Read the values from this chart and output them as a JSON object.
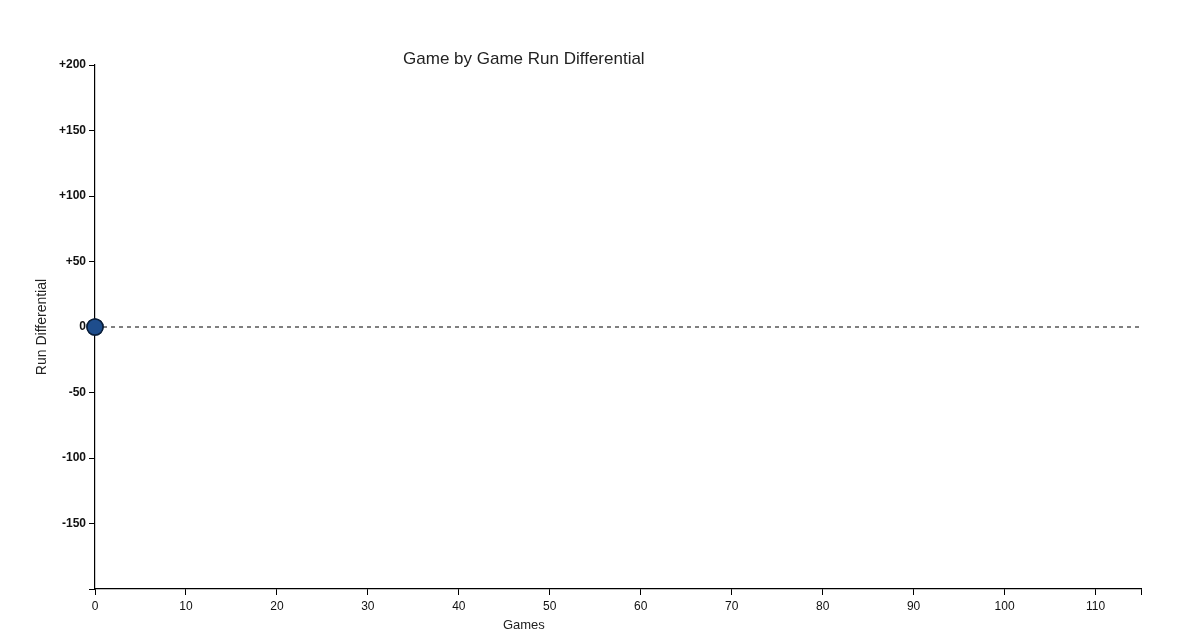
{
  "chart_data": {
    "type": "line",
    "title": "Game by Game Run Differential",
    "xlabel": "Games",
    "ylabel": "Run Differential",
    "x": [
      0
    ],
    "values": [
      0
    ],
    "color": "#1e4d8c",
    "marker": "circle",
    "xlim": [
      0,
      115
    ],
    "ylim": [
      -200,
      200
    ],
    "xticks": [
      0,
      10,
      20,
      30,
      40,
      50,
      60,
      70,
      80,
      90,
      100,
      110,
      {
        "value": 115,
        "label": null
      }
    ],
    "yticks": [
      {
        "value": -200,
        "label": null
      },
      -150,
      -100,
      -50,
      0,
      {
        "value": 50,
        "label": "+50"
      },
      {
        "value": 100,
        "label": "+100"
      },
      {
        "value": 150,
        "label": "+150"
      },
      {
        "value": 200,
        "label": "+200"
      }
    ],
    "ref_lines": [
      {
        "axis": "y",
        "value": 0,
        "line_style": "dashed",
        "color": "#000000"
      }
    ]
  }
}
